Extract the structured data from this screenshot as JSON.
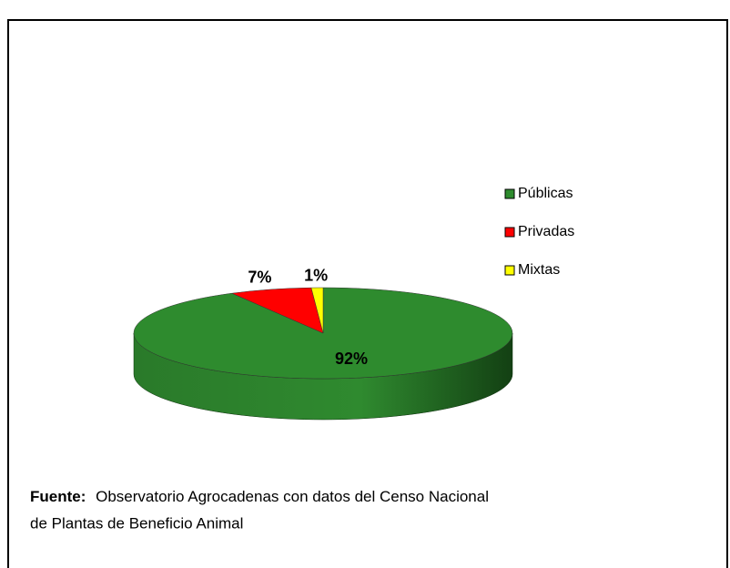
{
  "chart_data": {
    "type": "pie",
    "categories": [
      "Públicas",
      "Privadas",
      "Mixtas"
    ],
    "values": [
      92,
      7,
      1
    ],
    "value_labels": [
      "92%",
      "7%",
      "1%"
    ],
    "colors": [
      "#2e8b2e",
      "#ff0000",
      "#ffff00"
    ],
    "legend": "right",
    "source_label": "Fuente:",
    "source": "Observatorio Agrocadenas con datos del Censo Nacional de Plantas de Beneficio Animal"
  }
}
